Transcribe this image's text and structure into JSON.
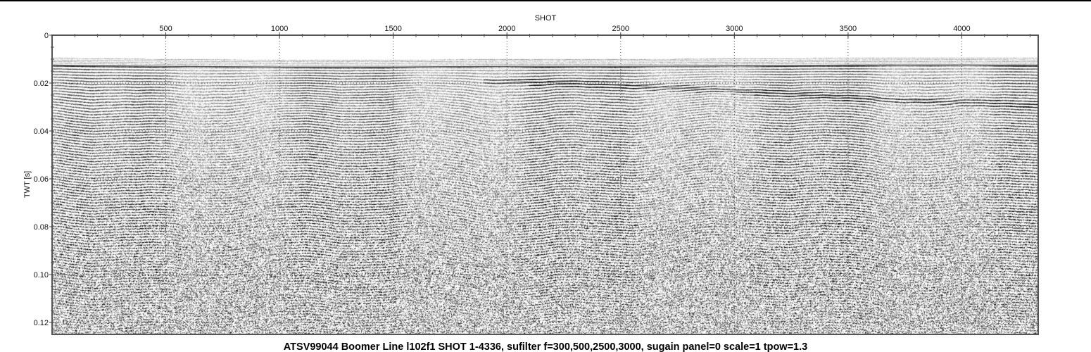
{
  "chart_data": {
    "type": "heatmap",
    "title": "ATSV99044 Boomer Line l102f1 SHOT 1-4336,  sufilter f=300,500,2500,3000, sugain panel=0 scale=1 tpow=1.3",
    "xlabel": "SHOT",
    "ylabel": "TWT [s]",
    "xlim": [
      0,
      4336
    ],
    "ylim": [
      0.125,
      0
    ],
    "y_inverted": true,
    "x_axis_position": "top",
    "xticks": [
      500,
      1000,
      1500,
      2000,
      2500,
      3000,
      3500,
      4000
    ],
    "xtick_labels": [
      "500",
      "1000",
      "1500",
      "2000",
      "2500",
      "3000",
      "3500",
      "4000"
    ],
    "yticks": [
      0,
      0.02,
      0.04,
      0.06,
      0.08,
      0.1,
      0.12
    ],
    "ytick_labels": [
      "0",
      "0.02",
      "0.04",
      "0.06",
      "0.08",
      "0.10",
      "0.12"
    ],
    "grid": "dotted",
    "colormap": "grayscale",
    "horizons": [
      {
        "shot": [
          0,
          500,
          1000,
          1500,
          2000,
          2500,
          3000,
          3500,
          4000,
          4336
        ],
        "twt": [
          0.0125,
          0.013,
          0.0133,
          0.0133,
          0.013,
          0.013,
          0.0128,
          0.0125,
          0.0124,
          0.0125
        ]
      },
      {
        "shot": [
          2000,
          2500,
          3000,
          3500,
          4000,
          4300
        ],
        "twt": [
          0.019,
          0.021,
          0.023,
          0.026,
          0.028,
          0.029
        ]
      }
    ]
  },
  "colors": {
    "frame": "#555555",
    "ink": "#111111",
    "background": "#ffffff"
  }
}
